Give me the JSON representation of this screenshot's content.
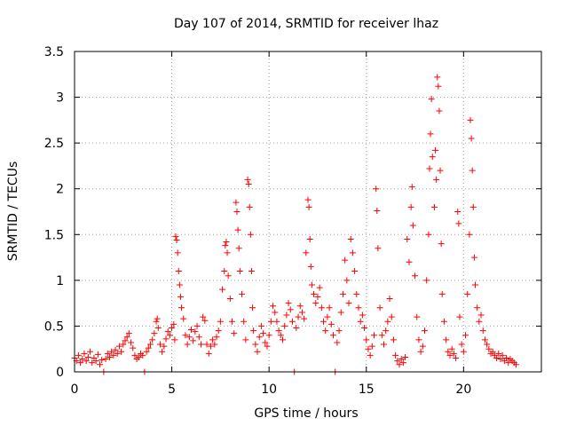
{
  "chart_data": {
    "type": "scatter",
    "title": "Day 107 of 2014, SRMTID for receiver lhaz",
    "xlabel": "GPS time / hours",
    "ylabel": "SRMTID / TECUs",
    "xlim": [
      0,
      24
    ],
    "ylim": [
      0,
      3.5
    ],
    "xticks": [
      0,
      5,
      10,
      15,
      20
    ],
    "xtick_labels": [
      "0",
      "5",
      "10",
      "15",
      "20"
    ],
    "yticks": [
      0,
      0.5,
      1,
      1.5,
      2,
      2.5,
      3,
      3.5
    ],
    "ytick_labels": [
      "0",
      "0.5",
      "1",
      "1.5",
      "2",
      "2.5",
      "3",
      "3.5"
    ],
    "grid": true,
    "marker": "plus",
    "marker_color": "#ff0000",
    "series": [
      {
        "name": "SRMTID",
        "points": [
          [
            0.0,
            0.15
          ],
          [
            0.1,
            0.12
          ],
          [
            0.2,
            0.18
          ],
          [
            0.3,
            0.1
          ],
          [
            0.4,
            0.14
          ],
          [
            0.5,
            0.2
          ],
          [
            0.6,
            0.12
          ],
          [
            0.7,
            0.16
          ],
          [
            0.8,
            0.22
          ],
          [
            0.9,
            0.1
          ],
          [
            1.0,
            0.15
          ],
          [
            1.1,
            0.12
          ],
          [
            1.2,
            0.19
          ],
          [
            1.3,
            0.08
          ],
          [
            1.4,
            0.13
          ],
          [
            1.5,
            0.0
          ],
          [
            1.6,
            0.14
          ],
          [
            1.7,
            0.2
          ],
          [
            1.8,
            0.16
          ],
          [
            1.9,
            0.22
          ],
          [
            2.0,
            0.18
          ],
          [
            2.1,
            0.24
          ],
          [
            2.2,
            0.2
          ],
          [
            2.3,
            0.28
          ],
          [
            2.4,
            0.22
          ],
          [
            2.5,
            0.3
          ],
          [
            2.6,
            0.34
          ],
          [
            2.7,
            0.38
          ],
          [
            2.8,
            0.42
          ],
          [
            2.9,
            0.32
          ],
          [
            3.0,
            0.26
          ],
          [
            3.1,
            0.18
          ],
          [
            3.2,
            0.14
          ],
          [
            3.3,
            0.16
          ],
          [
            3.4,
            0.2
          ],
          [
            3.5,
            0.18
          ],
          [
            3.6,
            0.0
          ],
          [
            3.7,
            0.22
          ],
          [
            3.8,
            0.26
          ],
          [
            3.9,
            0.3
          ],
          [
            4.0,
            0.35
          ],
          [
            4.1,
            0.42
          ],
          [
            4.2,
            0.55
          ],
          [
            4.25,
            0.58
          ],
          [
            4.3,
            0.48
          ],
          [
            4.4,
            0.3
          ],
          [
            4.5,
            0.22
          ],
          [
            4.6,
            0.28
          ],
          [
            4.7,
            0.36
          ],
          [
            4.8,
            0.44
          ],
          [
            4.9,
            0.4
          ],
          [
            5.0,
            0.48
          ],
          [
            5.1,
            0.52
          ],
          [
            5.15,
            0.35
          ],
          [
            5.2,
            1.48
          ],
          [
            5.25,
            1.44
          ],
          [
            5.3,
            1.3
          ],
          [
            5.35,
            1.1
          ],
          [
            5.4,
            0.95
          ],
          [
            5.45,
            0.82
          ],
          [
            5.5,
            0.7
          ],
          [
            5.6,
            0.58
          ],
          [
            5.7,
            0.4
          ],
          [
            5.8,
            0.3
          ],
          [
            5.9,
            0.38
          ],
          [
            6.0,
            0.46
          ],
          [
            6.1,
            0.34
          ],
          [
            6.2,
            0.44
          ],
          [
            6.3,
            0.5
          ],
          [
            6.4,
            0.38
          ],
          [
            6.5,
            0.3
          ],
          [
            6.6,
            0.6
          ],
          [
            6.7,
            0.56
          ],
          [
            6.8,
            0.3
          ],
          [
            6.9,
            0.2
          ],
          [
            7.0,
            0.28
          ],
          [
            7.1,
            0.35
          ],
          [
            7.2,
            0.3
          ],
          [
            7.3,
            0.38
          ],
          [
            7.4,
            0.45
          ],
          [
            7.5,
            0.55
          ],
          [
            7.6,
            0.9
          ],
          [
            7.7,
            1.1
          ],
          [
            7.75,
            1.38
          ],
          [
            7.8,
            1.42
          ],
          [
            7.85,
            1.3
          ],
          [
            7.9,
            1.05
          ],
          [
            8.0,
            0.8
          ],
          [
            8.1,
            0.55
          ],
          [
            8.2,
            0.42
          ],
          [
            8.3,
            1.85
          ],
          [
            8.35,
            1.75
          ],
          [
            8.4,
            1.55
          ],
          [
            8.45,
            1.35
          ],
          [
            8.5,
            1.1
          ],
          [
            8.6,
            0.85
          ],
          [
            8.7,
            0.55
          ],
          [
            8.8,
            0.35
          ],
          [
            8.9,
            2.1
          ],
          [
            8.95,
            2.05
          ],
          [
            9.0,
            1.8
          ],
          [
            9.05,
            1.5
          ],
          [
            9.1,
            1.1
          ],
          [
            9.15,
            0.7
          ],
          [
            9.2,
            0.45
          ],
          [
            9.3,
            0.3
          ],
          [
            9.4,
            0.22
          ],
          [
            9.5,
            0.38
          ],
          [
            9.6,
            0.5
          ],
          [
            9.7,
            0.42
          ],
          [
            9.8,
            0.32
          ],
          [
            9.9,
            0.28
          ],
          [
            10.0,
            0.4
          ],
          [
            10.1,
            0.55
          ],
          [
            10.2,
            0.72
          ],
          [
            10.3,
            0.65
          ],
          [
            10.4,
            0.55
          ],
          [
            10.5,
            0.45
          ],
          [
            10.6,
            0.4
          ],
          [
            10.7,
            0.35
          ],
          [
            10.8,
            0.5
          ],
          [
            10.9,
            0.62
          ],
          [
            11.0,
            0.75
          ],
          [
            11.1,
            0.68
          ],
          [
            11.2,
            0.55
          ],
          [
            11.3,
            0.0
          ],
          [
            11.4,
            0.48
          ],
          [
            11.5,
            0.6
          ],
          [
            11.6,
            0.72
          ],
          [
            11.7,
            0.65
          ],
          [
            11.8,
            0.58
          ],
          [
            11.9,
            1.3
          ],
          [
            12.0,
            1.88
          ],
          [
            12.05,
            1.8
          ],
          [
            12.1,
            1.45
          ],
          [
            12.15,
            1.15
          ],
          [
            12.2,
            0.95
          ],
          [
            12.3,
            0.85
          ],
          [
            12.4,
            0.75
          ],
          [
            12.5,
            0.82
          ],
          [
            12.6,
            0.92
          ],
          [
            12.7,
            0.7
          ],
          [
            12.8,
            0.55
          ],
          [
            12.9,
            0.45
          ],
          [
            13.0,
            0.6
          ],
          [
            13.1,
            0.7
          ],
          [
            13.2,
            0.52
          ],
          [
            13.3,
            0.4
          ],
          [
            13.4,
            0.0
          ],
          [
            13.5,
            0.32
          ],
          [
            13.6,
            0.45
          ],
          [
            13.7,
            0.65
          ],
          [
            13.8,
            0.85
          ],
          [
            13.9,
            1.22
          ],
          [
            14.0,
            1.0
          ],
          [
            14.1,
            0.75
          ],
          [
            14.2,
            1.45
          ],
          [
            14.3,
            1.3
          ],
          [
            14.4,
            1.1
          ],
          [
            14.5,
            0.85
          ],
          [
            14.6,
            0.7
          ],
          [
            14.7,
            0.55
          ],
          [
            14.8,
            0.62
          ],
          [
            14.9,
            0.48
          ],
          [
            15.0,
            0.35
          ],
          [
            15.1,
            0.25
          ],
          [
            15.2,
            0.18
          ],
          [
            15.3,
            0.28
          ],
          [
            15.4,
            0.4
          ],
          [
            15.5,
            2.0
          ],
          [
            15.55,
            1.76
          ],
          [
            15.6,
            1.35
          ],
          [
            15.7,
            0.7
          ],
          [
            15.8,
            0.4
          ],
          [
            15.9,
            0.3
          ],
          [
            16.0,
            0.45
          ],
          [
            16.1,
            0.55
          ],
          [
            16.2,
            0.8
          ],
          [
            16.3,
            0.6
          ],
          [
            16.4,
            0.35
          ],
          [
            16.5,
            0.18
          ],
          [
            16.6,
            0.12
          ],
          [
            16.7,
            0.08
          ],
          [
            16.8,
            0.14
          ],
          [
            16.9,
            0.1
          ],
          [
            17.0,
            0.16
          ],
          [
            17.1,
            1.45
          ],
          [
            17.2,
            1.2
          ],
          [
            17.3,
            1.8
          ],
          [
            17.35,
            2.02
          ],
          [
            17.4,
            1.6
          ],
          [
            17.5,
            1.05
          ],
          [
            17.6,
            0.6
          ],
          [
            17.7,
            0.35
          ],
          [
            17.8,
            0.22
          ],
          [
            17.9,
            0.28
          ],
          [
            18.0,
            0.45
          ],
          [
            18.1,
            1.0
          ],
          [
            18.2,
            1.5
          ],
          [
            18.25,
            2.22
          ],
          [
            18.3,
            2.6
          ],
          [
            18.35,
            2.98
          ],
          [
            18.4,
            2.35
          ],
          [
            18.5,
            1.8
          ],
          [
            18.55,
            2.42
          ],
          [
            18.6,
            2.1
          ],
          [
            18.65,
            3.22
          ],
          [
            18.7,
            3.12
          ],
          [
            18.75,
            2.85
          ],
          [
            18.8,
            2.2
          ],
          [
            18.85,
            1.4
          ],
          [
            18.9,
            0.85
          ],
          [
            19.0,
            0.55
          ],
          [
            19.1,
            0.35
          ],
          [
            19.2,
            0.22
          ],
          [
            19.3,
            0.18
          ],
          [
            19.4,
            0.25
          ],
          [
            19.5,
            0.2
          ],
          [
            19.6,
            0.15
          ],
          [
            19.7,
            1.75
          ],
          [
            19.75,
            1.62
          ],
          [
            19.8,
            0.6
          ],
          [
            19.9,
            0.3
          ],
          [
            20.0,
            0.22
          ],
          [
            20.1,
            0.4
          ],
          [
            20.2,
            0.85
          ],
          [
            20.3,
            1.5
          ],
          [
            20.35,
            2.75
          ],
          [
            20.4,
            2.55
          ],
          [
            20.45,
            2.2
          ],
          [
            20.5,
            1.8
          ],
          [
            20.55,
            1.25
          ],
          [
            20.6,
            0.95
          ],
          [
            20.7,
            0.7
          ],
          [
            20.8,
            0.55
          ],
          [
            20.9,
            0.62
          ],
          [
            21.0,
            0.45
          ],
          [
            21.1,
            0.35
          ],
          [
            21.2,
            0.3
          ],
          [
            21.3,
            0.25
          ],
          [
            21.4,
            0.2
          ],
          [
            21.5,
            0.22
          ],
          [
            21.6,
            0.18
          ],
          [
            21.7,
            0.15
          ],
          [
            21.8,
            0.2
          ],
          [
            21.9,
            0.14
          ],
          [
            22.0,
            0.18
          ],
          [
            22.1,
            0.12
          ],
          [
            22.2,
            0.15
          ],
          [
            22.3,
            0.1
          ],
          [
            22.4,
            0.14
          ],
          [
            22.5,
            0.12
          ],
          [
            22.6,
            0.1
          ],
          [
            22.7,
            0.08
          ]
        ]
      }
    ]
  }
}
